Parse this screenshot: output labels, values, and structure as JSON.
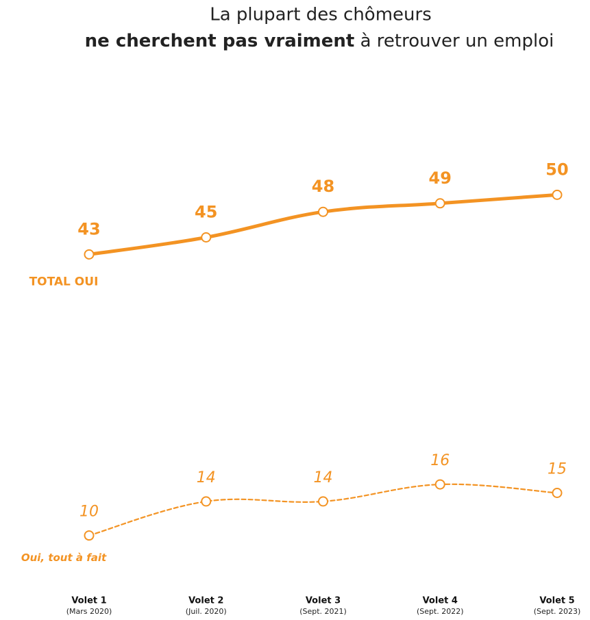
{
  "chart_data": {
    "type": "line",
    "title": {
      "line1": "La plupart des chômeurs",
      "line2_bold": "ne cherchent pas vraiment",
      "line2_rest": " à retrouver un emploi"
    },
    "categories": [
      "Volet 1",
      "Volet 2",
      "Volet 3",
      "Volet 4",
      "Volet 5"
    ],
    "category_dates": [
      "(Mars 2020)",
      "(Juil. 2020)",
      "(Sept. 2021)",
      "(Sept. 2022)",
      "(Sept. 2023)"
    ],
    "ylim": [
      0,
      60
    ],
    "series": [
      {
        "name": "TOTAL OUI",
        "color": "#f39323",
        "style": "solid",
        "values": [
          43,
          45,
          48,
          49,
          50
        ]
      },
      {
        "name": "Oui, tout à fait",
        "color": "#f39323",
        "style": "dashed",
        "values": [
          10,
          14,
          14,
          16,
          15
        ]
      }
    ]
  }
}
